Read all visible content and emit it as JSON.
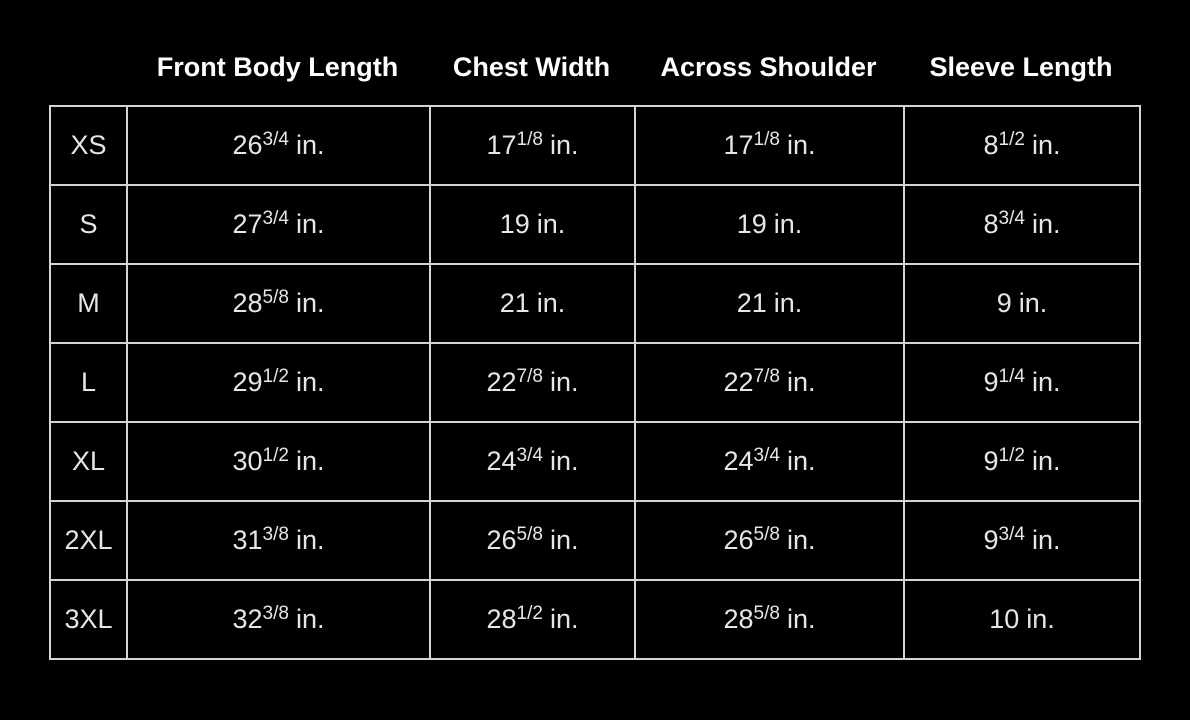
{
  "headers": [
    "Front Body Length",
    "Chest Width",
    "Across Shoulder",
    "Sleeve Length"
  ],
  "rows": [
    {
      "size": "XS",
      "cells": [
        {
          "whole": "26",
          "fraction": "3/4",
          "unit": "in."
        },
        {
          "whole": "17",
          "fraction": "1/8",
          "unit": "in."
        },
        {
          "whole": "17",
          "fraction": "1/8",
          "unit": "in."
        },
        {
          "whole": "8",
          "fraction": "1/2",
          "unit": "in."
        }
      ]
    },
    {
      "size": "S",
      "cells": [
        {
          "whole": "27",
          "fraction": "3/4",
          "unit": "in."
        },
        {
          "whole": "19",
          "unit": "in."
        },
        {
          "whole": "19",
          "unit": "in."
        },
        {
          "whole": "8",
          "fraction": "3/4",
          "unit": "in."
        }
      ]
    },
    {
      "size": "M",
      "cells": [
        {
          "whole": "28",
          "fraction": "5/8",
          "unit": "in."
        },
        {
          "whole": "21",
          "unit": "in."
        },
        {
          "whole": "21",
          "unit": "in."
        },
        {
          "whole": "9",
          "unit": "in."
        }
      ]
    },
    {
      "size": "L",
      "cells": [
        {
          "whole": "29",
          "fraction": "1/2",
          "unit": "in."
        },
        {
          "whole": "22",
          "fraction": "7/8",
          "unit": "in."
        },
        {
          "whole": "22",
          "fraction": "7/8",
          "unit": "in."
        },
        {
          "whole": "9",
          "fraction": "1/4",
          "unit": "in."
        }
      ]
    },
    {
      "size": "XL",
      "cells": [
        {
          "whole": "30",
          "fraction": "1/2",
          "unit": "in."
        },
        {
          "whole": "24",
          "fraction": "3/4",
          "unit": "in."
        },
        {
          "whole": "24",
          "fraction": "3/4",
          "unit": "in."
        },
        {
          "whole": "9",
          "fraction": "1/2",
          "unit": "in."
        }
      ]
    },
    {
      "size": "2XL",
      "cells": [
        {
          "whole": "31",
          "fraction": "3/8",
          "unit": "in."
        },
        {
          "whole": "26",
          "fraction": "5/8",
          "unit": "in."
        },
        {
          "whole": "26",
          "fraction": "5/8",
          "unit": "in."
        },
        {
          "whole": "9",
          "fraction": "3/4",
          "unit": "in."
        }
      ]
    },
    {
      "size": "3XL",
      "cells": [
        {
          "whole": "32",
          "fraction": "3/8",
          "unit": "in."
        },
        {
          "whole": "28",
          "fraction": "1/2",
          "unit": "in."
        },
        {
          "whole": "28",
          "fraction": "5/8",
          "unit": "in."
        },
        {
          "whole": "10",
          "unit": "in."
        }
      ]
    }
  ]
}
